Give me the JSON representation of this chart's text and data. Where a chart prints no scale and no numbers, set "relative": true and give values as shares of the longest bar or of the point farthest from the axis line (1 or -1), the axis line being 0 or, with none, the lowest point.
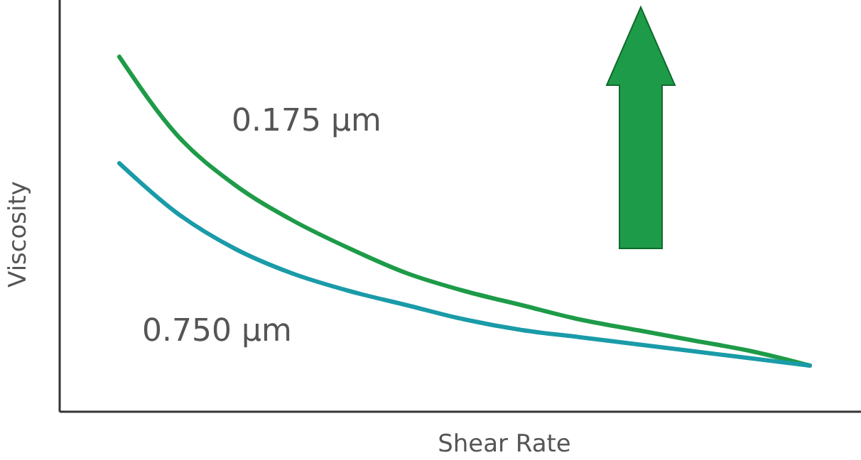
{
  "chart_data": {
    "type": "line",
    "relative": true,
    "xlabel": "Shear Rate",
    "ylabel": "Viscosity",
    "categories": [
      null,
      null,
      null,
      null,
      null,
      null,
      null,
      null,
      null,
      null,
      null,
      null,
      null
    ],
    "series": [
      {
        "name": "0.175 μm",
        "color": "#1e9b48",
        "values": [
          1.0,
          0.78,
          0.64,
          0.54,
          0.46,
          0.39,
          0.34,
          0.3,
          0.26,
          0.23,
          0.2,
          0.17,
          0.13
        ]
      },
      {
        "name": "0.750 μm",
        "color": "#1a9ba8",
        "values": [
          0.7,
          0.56,
          0.46,
          0.39,
          0.34,
          0.3,
          0.26,
          0.23,
          0.21,
          0.19,
          0.17,
          0.15,
          0.13
        ]
      }
    ],
    "marker": "none",
    "line_style": "solid"
  }
}
